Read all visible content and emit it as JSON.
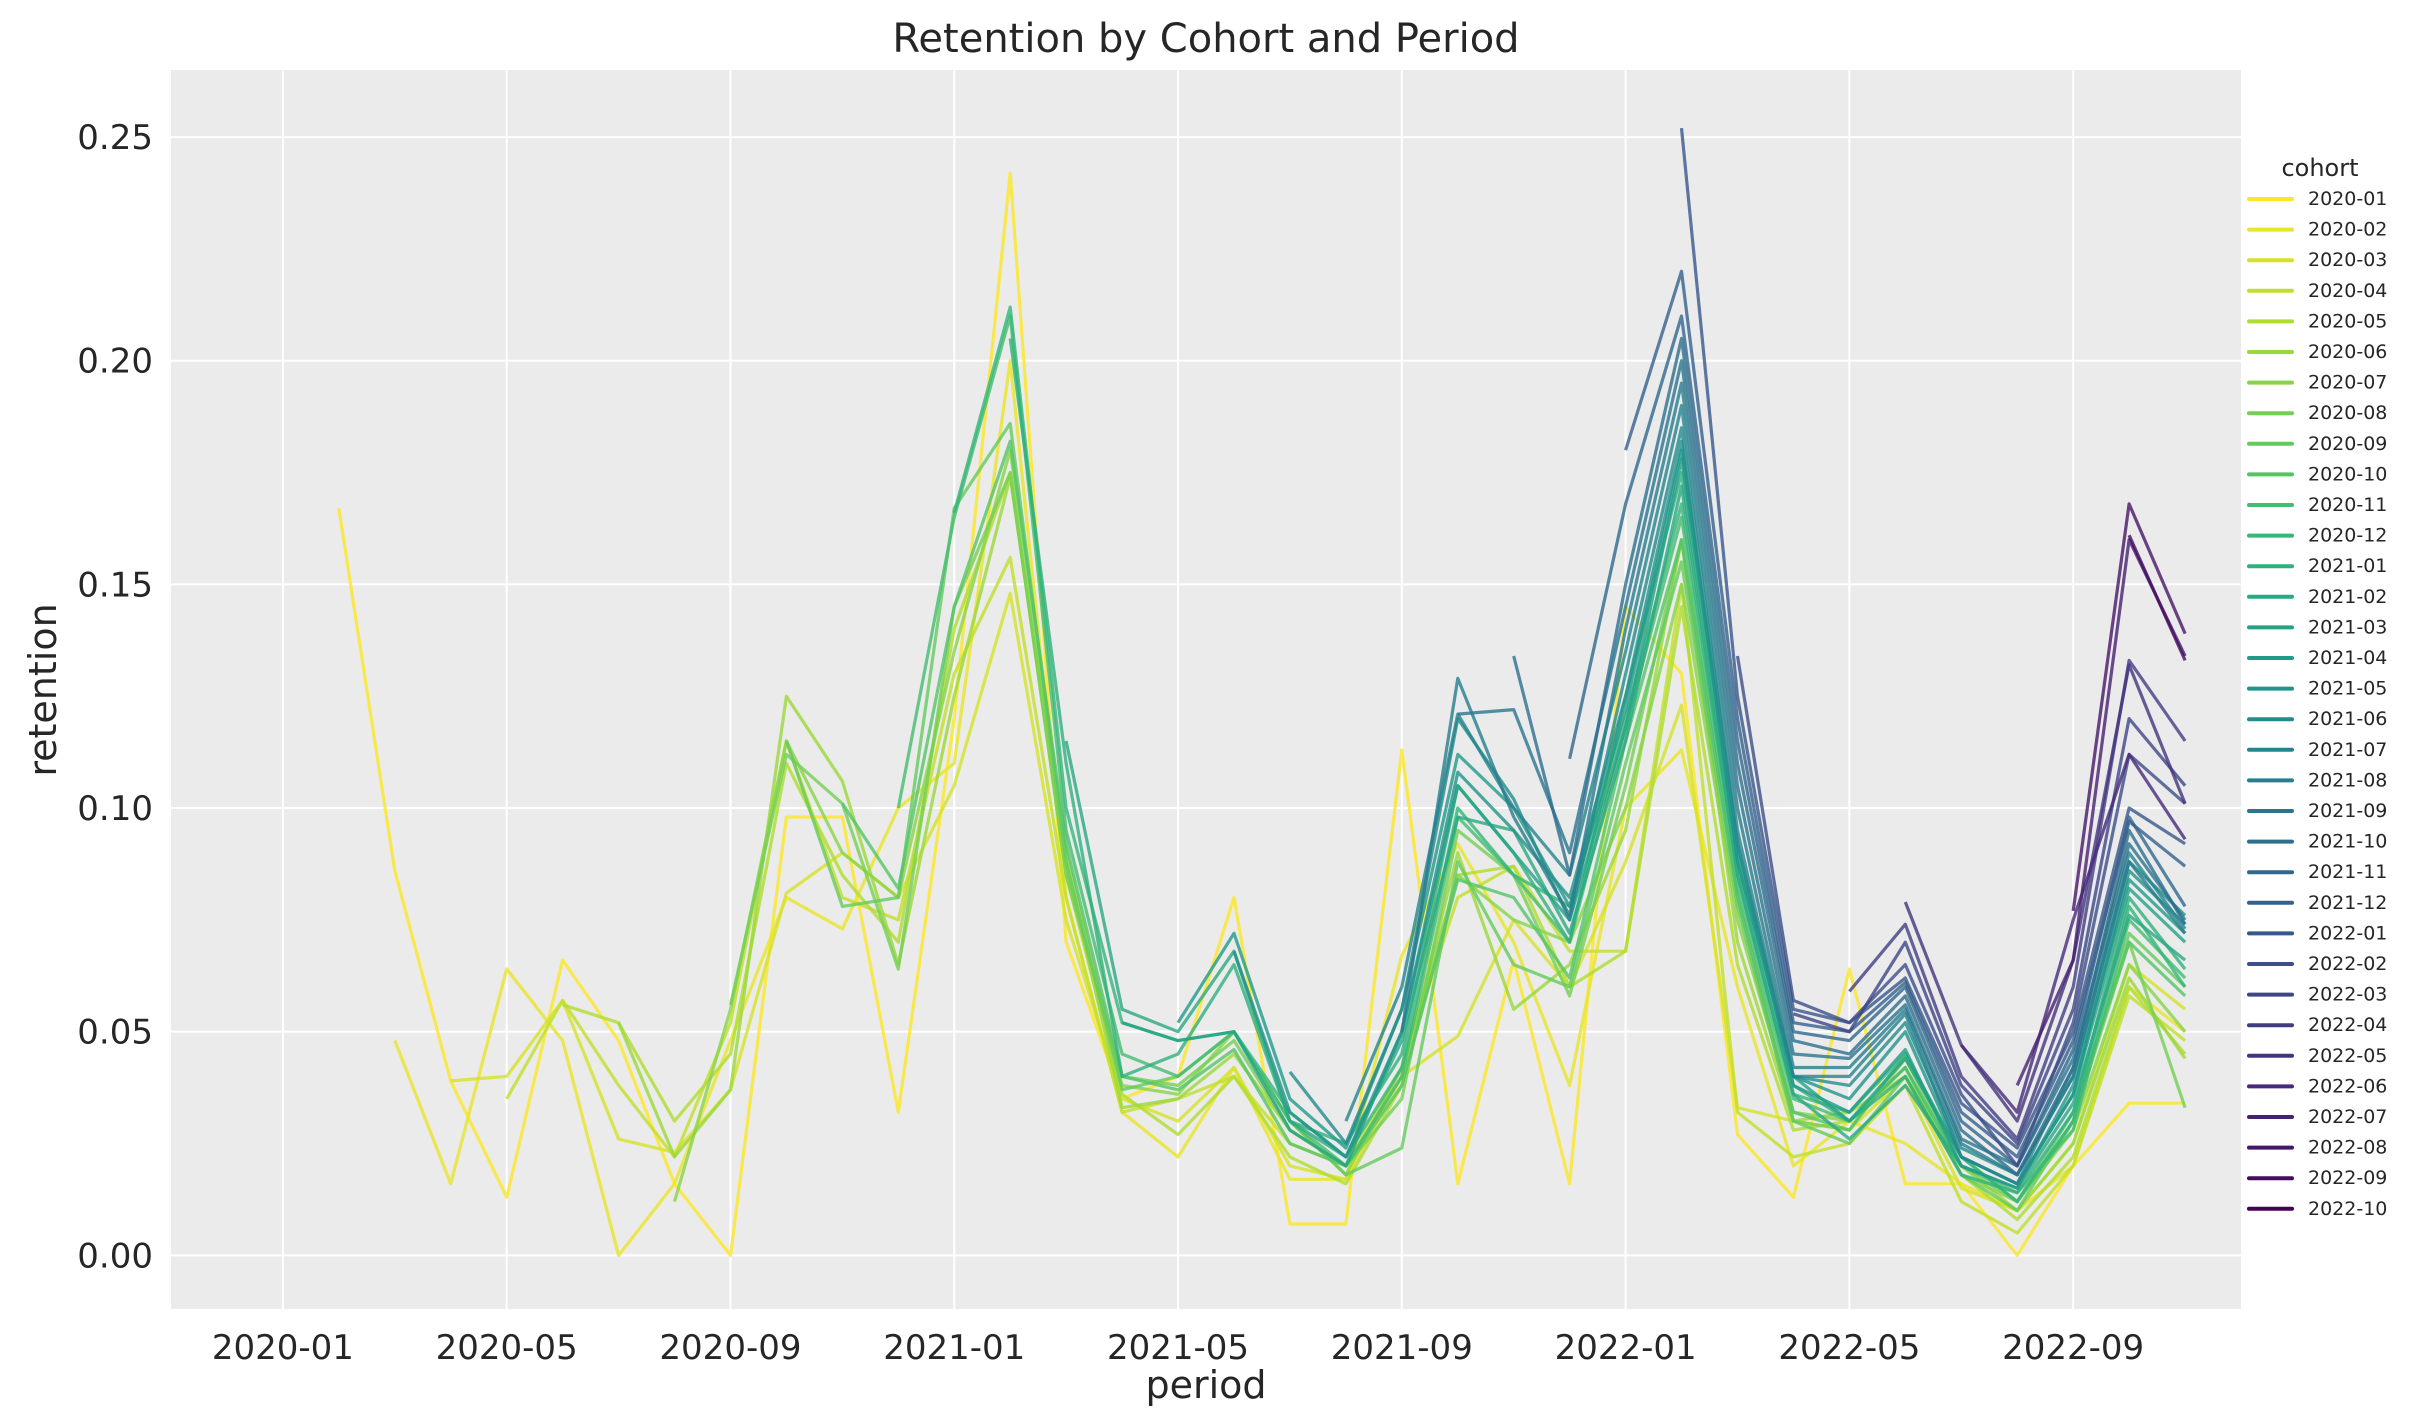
{
  "chart_data": {
    "type": "line",
    "title": "Retention by Cohort and Period",
    "xlabel": "period",
    "ylabel": "retention",
    "xlim": [
      "2019-11",
      "2022-12"
    ],
    "ylim": [
      -0.012,
      0.265
    ],
    "x_ticks": [
      "2020-01",
      "2020-05",
      "2020-09",
      "2021-01",
      "2021-05",
      "2021-09",
      "2022-01",
      "2022-05",
      "2022-09"
    ],
    "y_ticks": [
      0.0,
      0.05,
      0.1,
      0.15,
      0.2,
      0.25
    ],
    "y_tick_labels": [
      "0.00",
      "0.05",
      "0.10",
      "0.15",
      "0.20",
      "0.25"
    ],
    "grid": true,
    "legend": {
      "title": "cohort",
      "placement": "right"
    },
    "colormap": [
      "#fde725",
      "#b5de2b",
      "#6ece58",
      "#35b779",
      "#1f9e89",
      "#26828e",
      "#31688e",
      "#3e4989",
      "#482878",
      "#440154"
    ],
    "series": [
      {
        "name": "2020-01",
        "start": "2020-02",
        "values": [
          0.167,
          0.086,
          0.039,
          0.013,
          0.066,
          0.048,
          0.016,
          0.0,
          0.098,
          0.098,
          0.032,
          0.12,
          0.242,
          0.07,
          0.035,
          0.04,
          0.08,
          0.007,
          0.007,
          0.113,
          0.016,
          0.066,
          0.016,
          0.145,
          0.13,
          0.027,
          0.013,
          0.064,
          0.016,
          0.016,
          0.0,
          0.02,
          0.034,
          0.034
        ]
      },
      {
        "name": "2020-02",
        "start": "2020-03",
        "values": [
          0.048,
          0.016,
          0.064,
          0.048,
          0.0,
          0.016,
          0.048,
          0.08,
          0.073,
          0.1,
          0.11,
          0.2,
          0.08,
          0.032,
          0.022,
          0.042,
          0.017,
          0.017,
          0.067,
          0.092,
          0.07,
          0.038,
          0.1,
          0.113,
          0.06,
          0.02,
          0.03,
          0.025,
          0.016,
          0.01,
          0.02,
          0.06,
          0.05
        ]
      },
      {
        "name": "2020-03",
        "start": "2020-04",
        "values": [
          0.039,
          0.04,
          0.057,
          0.026,
          0.023,
          0.037,
          0.081,
          0.09,
          0.08,
          0.105,
          0.148,
          0.075,
          0.035,
          0.03,
          0.042,
          0.02,
          0.017,
          0.04,
          0.049,
          0.075,
          0.06,
          0.088,
          0.123,
          0.033,
          0.03,
          0.028,
          0.04,
          0.015,
          0.01,
          0.025,
          0.065,
          0.055
        ]
      },
      {
        "name": "2020-04",
        "start": "2020-05",
        "values": [
          0.035,
          0.057,
          0.038,
          0.022,
          0.052,
          0.115,
          0.08,
          0.075,
          0.13,
          0.156,
          0.08,
          0.032,
          0.035,
          0.04,
          0.025,
          0.02,
          0.042,
          0.08,
          0.087,
          0.068,
          0.068,
          0.15,
          0.032,
          0.022,
          0.025,
          0.038,
          0.012,
          0.005,
          0.02,
          0.058,
          0.048
        ]
      },
      {
        "name": "2020-05",
        "start": "2020-06",
        "values": [
          0.056,
          0.052,
          0.03,
          0.045,
          0.11,
          0.085,
          0.07,
          0.14,
          0.175,
          0.085,
          0.036,
          0.027,
          0.04,
          0.022,
          0.016,
          0.038,
          0.085,
          0.087,
          0.06,
          0.068,
          0.145,
          0.065,
          0.028,
          0.03,
          0.042,
          0.018,
          0.008,
          0.022,
          0.06,
          0.045
        ]
      },
      {
        "name": "2020-06",
        "start": "2020-07",
        "values": [
          0.052,
          0.022,
          0.037,
          0.125,
          0.106,
          0.065,
          0.125,
          0.174,
          0.088,
          0.033,
          0.035,
          0.045,
          0.028,
          0.02,
          0.04,
          0.09,
          0.055,
          0.065,
          0.095,
          0.16,
          0.07,
          0.03,
          0.032,
          0.04,
          0.02,
          0.01,
          0.025,
          0.062,
          0.044
        ]
      },
      {
        "name": "2020-07",
        "start": "2020-08",
        "values": [
          0.012,
          0.055,
          0.115,
          0.09,
          0.08,
          0.135,
          0.18,
          0.09,
          0.038,
          0.036,
          0.05,
          0.03,
          0.018,
          0.042,
          0.085,
          0.075,
          0.07,
          0.1,
          0.15,
          0.075,
          0.032,
          0.03,
          0.042,
          0.018,
          0.012,
          0.028,
          0.065,
          0.05
        ]
      },
      {
        "name": "2020-08",
        "start": "2020-09",
        "values": [
          0.056,
          0.112,
          0.101,
          0.064,
          0.145,
          0.175,
          0.085,
          0.04,
          0.038,
          0.048,
          0.028,
          0.02,
          0.035,
          0.095,
          0.085,
          0.058,
          0.105,
          0.16,
          0.08,
          0.03,
          0.028,
          0.044,
          0.02,
          0.012,
          0.03,
          0.07,
          0.033
        ]
      },
      {
        "name": "2020-09",
        "start": "2020-10",
        "values": [
          0.115,
          0.078,
          0.08,
          0.167,
          0.186,
          0.088,
          0.037,
          0.04,
          0.05,
          0.03,
          0.018,
          0.024,
          0.088,
          0.065,
          0.06,
          0.11,
          0.155,
          0.078,
          0.03,
          0.025,
          0.04,
          0.018,
          0.01,
          0.03,
          0.072,
          0.06
        ]
      },
      {
        "name": "2020-10",
        "start": "2020-11",
        "values": [
          0.101,
          0.082,
          0.145,
          0.182,
          0.092,
          0.04,
          0.037,
          0.046,
          0.025,
          0.02,
          0.038,
          0.084,
          0.08,
          0.062,
          0.115,
          0.16,
          0.08,
          0.032,
          0.028,
          0.045,
          0.022,
          0.012,
          0.032,
          0.07,
          0.058
        ]
      },
      {
        "name": "2020-11",
        "start": "2020-12",
        "values": [
          0.1,
          0.165,
          0.21,
          0.095,
          0.045,
          0.04,
          0.05,
          0.03,
          0.02,
          0.04,
          0.098,
          0.085,
          0.07,
          0.118,
          0.165,
          0.082,
          0.035,
          0.03,
          0.042,
          0.02,
          0.014,
          0.028,
          0.075,
          0.062
        ]
      },
      {
        "name": "2020-12",
        "start": "2021-01",
        "values": [
          0.166,
          0.212,
          0.1,
          0.052,
          0.048,
          0.05,
          0.032,
          0.022,
          0.042,
          0.1,
          0.085,
          0.078,
          0.12,
          0.168,
          0.085,
          0.036,
          0.032,
          0.045,
          0.022,
          0.012,
          0.03,
          0.078,
          0.06
        ]
      },
      {
        "name": "2021-01",
        "start": "2021-02",
        "values": [
          0.205,
          0.11,
          0.04,
          0.045,
          0.065,
          0.03,
          0.025,
          0.045,
          0.105,
          0.09,
          0.07,
          0.125,
          0.175,
          0.088,
          0.038,
          0.03,
          0.04,
          0.018,
          0.014,
          0.032,
          0.08,
          0.064
        ]
      },
      {
        "name": "2021-02",
        "start": "2021-03",
        "values": [
          0.115,
          0.055,
          0.05,
          0.068,
          0.03,
          0.022,
          0.048,
          0.098,
          0.095,
          0.072,
          0.115,
          0.172,
          0.085,
          0.036,
          0.026,
          0.038,
          0.02,
          0.015,
          0.034,
          0.076,
          0.066
        ]
      },
      {
        "name": "2021-03",
        "start": "2021-04",
        "values": [
          0.052,
          0.048,
          0.05,
          0.028,
          0.02,
          0.05,
          0.105,
          0.09,
          0.075,
          0.118,
          0.178,
          0.09,
          0.04,
          0.03,
          0.044,
          0.022,
          0.016,
          0.036,
          0.082,
          0.07
        ]
      },
      {
        "name": "2021-04",
        "start": "2021-05",
        "values": [
          0.052,
          0.072,
          0.035,
          0.024,
          0.055,
          0.112,
          0.1,
          0.078,
          0.122,
          0.18,
          0.092,
          0.038,
          0.032,
          0.046,
          0.02,
          0.015,
          0.038,
          0.084,
          0.072
        ]
      },
      {
        "name": "2021-05",
        "start": "2021-06",
        "values": [
          0.068,
          0.032,
          0.022,
          0.05,
          0.108,
          0.095,
          0.08,
          0.125,
          0.182,
          0.088,
          0.04,
          0.035,
          0.05,
          0.022,
          0.016,
          0.036,
          0.086,
          0.074
        ]
      },
      {
        "name": "2021-06",
        "start": "2021-07",
        "values": [
          0.041,
          0.025,
          0.055,
          0.12,
          0.102,
          0.075,
          0.13,
          0.185,
          0.092,
          0.04,
          0.038,
          0.052,
          0.024,
          0.018,
          0.04,
          0.088,
          0.076
        ]
      },
      {
        "name": "2021-07",
        "start": "2021-08",
        "values": [
          0.03,
          0.06,
          0.121,
          0.1,
          0.085,
          0.135,
          0.19,
          0.095,
          0.04,
          0.04,
          0.054,
          0.022,
          0.016,
          0.042,
          0.09,
          0.073
        ]
      },
      {
        "name": "2021-08",
        "start": "2021-09",
        "values": [
          0.05,
          0.129,
          0.098,
          0.076,
          0.14,
          0.195,
          0.1,
          0.042,
          0.042,
          0.055,
          0.025,
          0.018,
          0.04,
          0.088,
          0.072
        ]
      },
      {
        "name": "2021-09",
        "start": "2021-10",
        "values": [
          0.121,
          0.122,
          0.09,
          0.145,
          0.2,
          0.105,
          0.045,
          0.044,
          0.056,
          0.026,
          0.02,
          0.044,
          0.092,
          0.075
        ]
      },
      {
        "name": "2021-10",
        "start": "2021-11",
        "values": [
          0.134,
          0.085,
          0.15,
          0.205,
          0.11,
          0.048,
          0.045,
          0.058,
          0.028,
          0.018,
          0.042,
          0.095,
          0.074
        ]
      },
      {
        "name": "2021-11",
        "start": "2021-12",
        "values": [
          0.111,
          0.168,
          0.21,
          0.115,
          0.05,
          0.048,
          0.06,
          0.03,
          0.02,
          0.046,
          0.098,
          0.078
        ]
      },
      {
        "name": "2021-12",
        "start": "2022-01",
        "values": [
          0.18,
          0.22,
          0.12,
          0.052,
          0.05,
          0.061,
          0.032,
          0.022,
          0.048,
          0.097,
          0.087
        ]
      },
      {
        "name": "2022-01",
        "start": "2022-02",
        "values": [
          0.252,
          0.125,
          0.055,
          0.052,
          0.062,
          0.034,
          0.024,
          0.05,
          0.1,
          0.092
        ]
      },
      {
        "name": "2022-02",
        "start": "2022-03",
        "values": [
          0.134,
          0.057,
          0.052,
          0.065,
          0.036,
          0.02,
          0.052,
          0.112,
          0.101
        ]
      },
      {
        "name": "2022-03",
        "start": "2022-04",
        "values": [
          0.054,
          0.05,
          0.07,
          0.038,
          0.025,
          0.055,
          0.12,
          0.105
        ]
      },
      {
        "name": "2022-04",
        "start": "2022-05",
        "values": [
          0.059,
          0.074,
          0.04,
          0.026,
          0.06,
          0.133,
          0.115
        ]
      },
      {
        "name": "2022-05",
        "start": "2022-06",
        "values": [
          0.079,
          0.047,
          0.03,
          0.066,
          0.132,
          0.101
        ]
      },
      {
        "name": "2022-06",
        "start": "2022-07",
        "values": [
          0.047,
          0.032,
          0.075,
          0.112,
          0.093
        ]
      },
      {
        "name": "2022-07",
        "start": "2022-08",
        "values": [
          0.038,
          0.066,
          0.16,
          0.134
        ]
      },
      {
        "name": "2022-08",
        "start": "2022-09",
        "values": [
          0.077,
          0.168,
          0.139
        ]
      },
      {
        "name": "2022-09",
        "start": "2022-10",
        "values": [
          0.161,
          0.133
        ]
      },
      {
        "name": "2022-10",
        "start": "2022-11",
        "values": [
          0.07
        ]
      }
    ]
  }
}
